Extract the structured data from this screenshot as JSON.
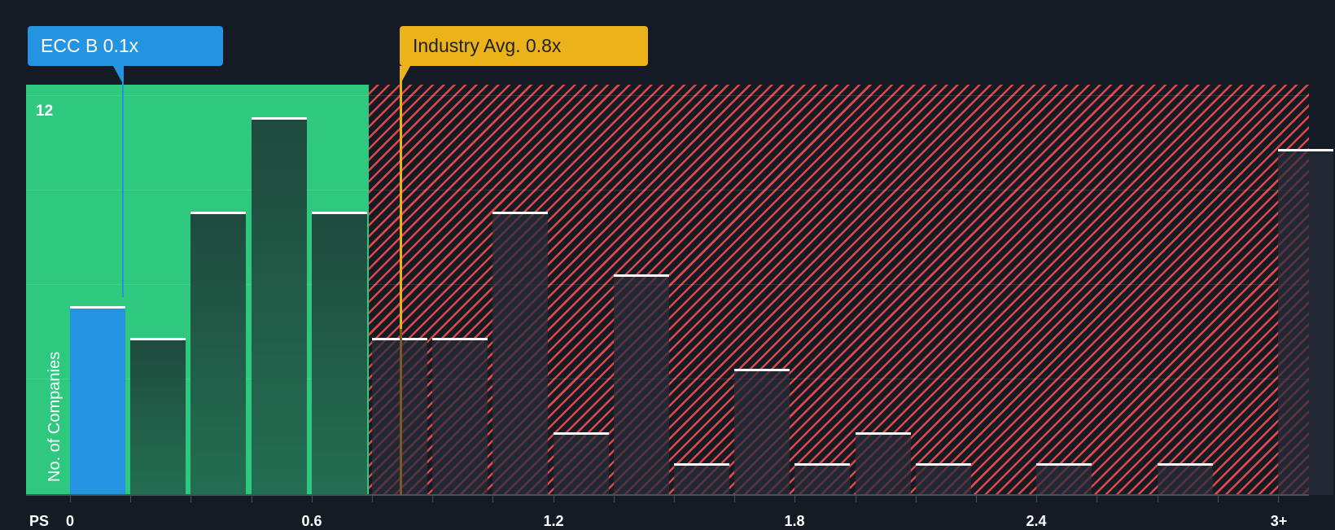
{
  "chart_data": {
    "type": "bar",
    "title": "",
    "xlabel": "PS",
    "ylabel": "No. of Companies",
    "x_tick_labels": [
      "0",
      "0.6",
      "1.2",
      "1.8",
      "2.4",
      "3+"
    ],
    "y_tick_labels": [
      "12"
    ],
    "ylim": [
      0,
      12.5
    ],
    "bin_width": 0.15,
    "categories": [
      "0–0.15",
      "0.15–0.3",
      "0.3–0.45",
      "0.45–0.6",
      "0.6–0.75",
      "0.75–0.9",
      "0.9–1.05",
      "1.05–1.2",
      "1.2–1.35",
      "1.35–1.5",
      "1.5–1.65",
      "1.65–1.8",
      "1.8–1.95",
      "1.95–2.1",
      "2.1–2.25",
      "2.25–2.4",
      "2.4–2.55",
      "2.55–2.7",
      "2.7–2.85",
      "2.85–3.0",
      "3+"
    ],
    "values": [
      6,
      5,
      9,
      12,
      9,
      5,
      5,
      9,
      2,
      7,
      1,
      4,
      1,
      2,
      1,
      0,
      1,
      0,
      1,
      0,
      11
    ],
    "highlight_bin_index": 0,
    "annotations": [
      {
        "label": "ECC B 0.1x",
        "value": 0.1,
        "color": "#2594e0"
      },
      {
        "label": "Industry Avg. 0.8x",
        "value": 0.8,
        "color": "#ecb21a"
      }
    ],
    "zones": [
      {
        "name": "below-average",
        "from": 0,
        "to": 0.8,
        "color": "#2ec97e"
      },
      {
        "name": "above-average",
        "from": 0.8,
        "to": "3+",
        "color": "#e04848",
        "pattern": "diagonal-hatch"
      }
    ],
    "grid": true,
    "legend": null
  },
  "labels": {
    "company_callout": "ECC B 0.1x",
    "industry_callout": "Industry Avg. 0.8x",
    "y_axis_title": "No. of Companies",
    "x_axis_title": "PS",
    "y_tick_12": "12",
    "x_ticks": [
      "0",
      "0.6",
      "1.2",
      "1.8",
      "2.4",
      "3+"
    ]
  },
  "colors": {
    "background": "#151b24",
    "company": "#2594e0",
    "industry": "#ecb21a",
    "below_zone": "#2ec97e",
    "above_zone_hatch": "#e04848"
  }
}
